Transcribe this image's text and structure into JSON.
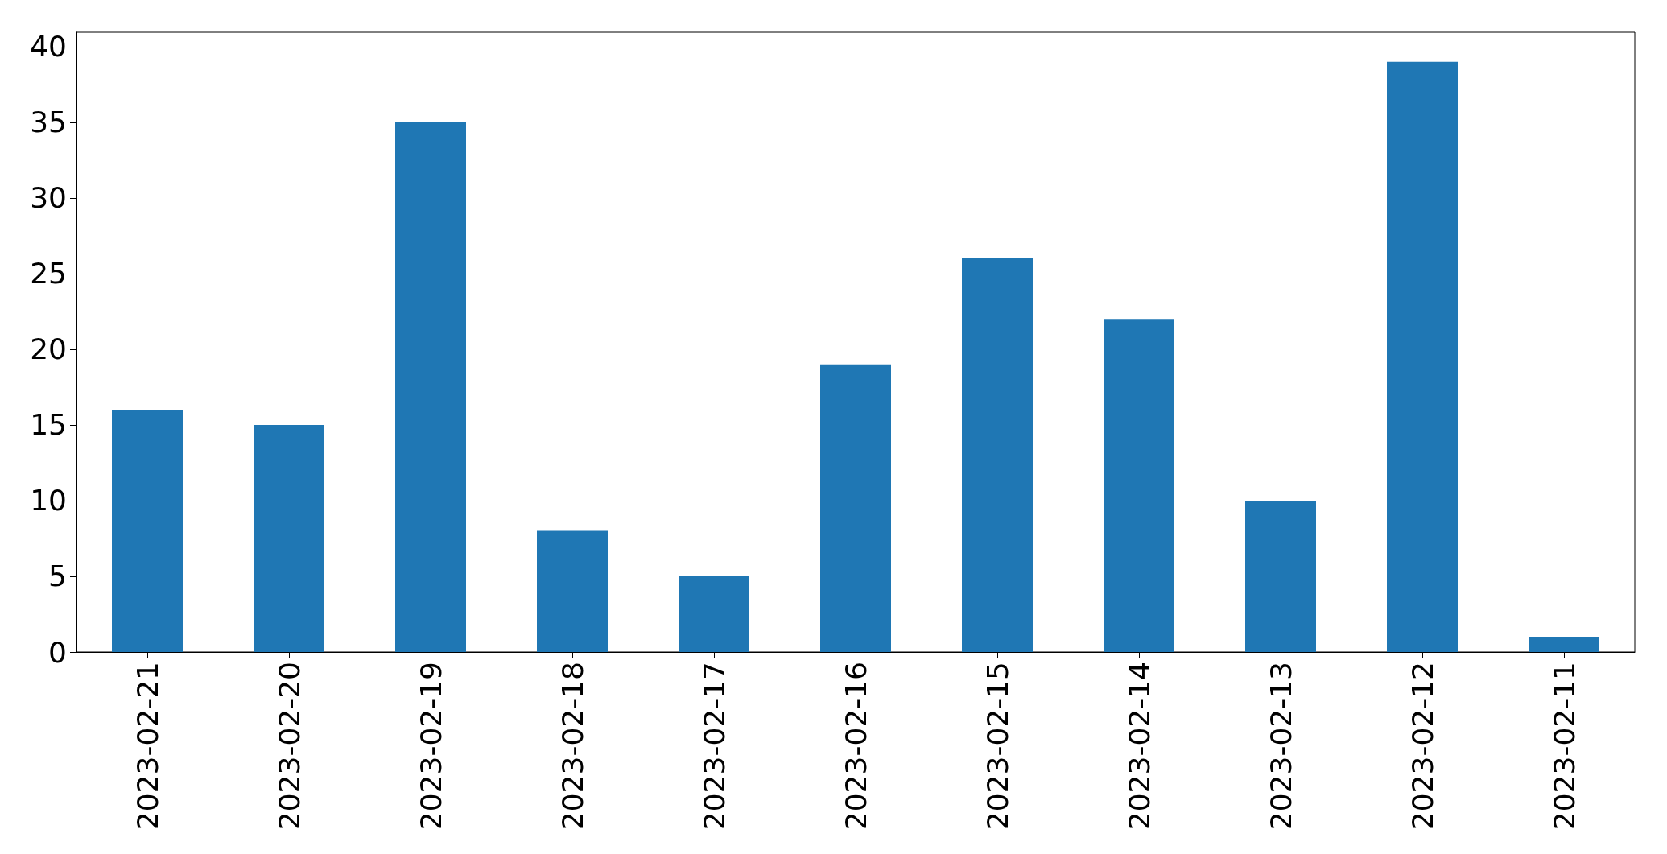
{
  "chart_data": {
    "type": "bar",
    "categories": [
      "2023-02-21",
      "2023-02-20",
      "2023-02-19",
      "2023-02-18",
      "2023-02-17",
      "2023-02-16",
      "2023-02-15",
      "2023-02-14",
      "2023-02-13",
      "2023-02-12",
      "2023-02-11"
    ],
    "values": [
      16,
      15,
      35,
      8,
      5,
      19,
      26,
      22,
      10,
      39,
      1
    ],
    "color": "#1f77b4",
    "ylim": [
      0,
      40.95
    ],
    "yticks": [
      0,
      5,
      10,
      15,
      20,
      25,
      30,
      35,
      40
    ]
  }
}
